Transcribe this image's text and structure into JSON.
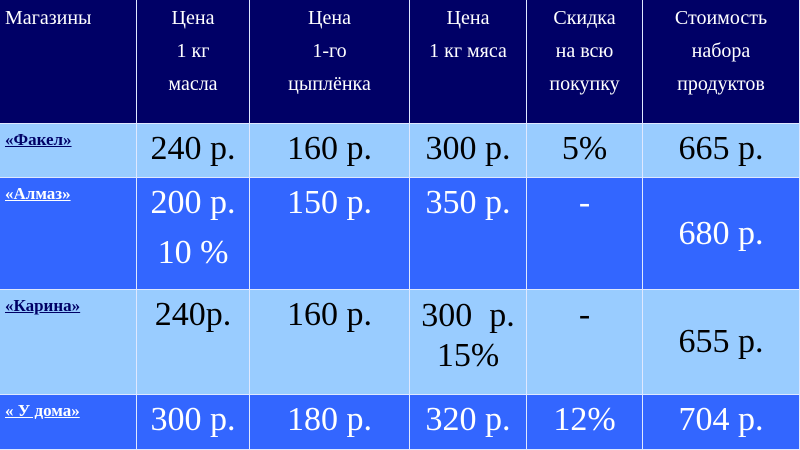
{
  "colors": {
    "header": "#000066",
    "row_light": "#99ccff",
    "row_bright": "#3366ff"
  },
  "header": [
    "Магазины",
    "Цена\n1 кг\nмасла",
    "Цена\n1-го\nцыплёнка",
    "Цена\n1 кг мяса",
    "Скидка\nна всю\nпокупку",
    "Стоимость\nнабора\nпродуктов"
  ],
  "rows": [
    {
      "store": "«Факел»",
      "butter": "240 р.",
      "chicken": "160 р.",
      "meat": "300 р.",
      "discount": "5%",
      "total": "665 р."
    },
    {
      "store": "«Алмаз»",
      "butter": "200 р.",
      "butter_note": "10 %",
      "chicken": "150 р.",
      "meat": "350 р.",
      "discount": "-",
      "total": "680 р."
    },
    {
      "store": "«Карина»",
      "butter": "240р.",
      "chicken": "160 р.",
      "meat": "300  р.",
      "meat_note": "15%",
      "discount": "-",
      "total": "655 р."
    },
    {
      "store": "« У дома»",
      "butter": "300 р.",
      "chicken": "180 р.",
      "meat": "320 р.",
      "discount": "12%",
      "total": "704 р."
    }
  ]
}
